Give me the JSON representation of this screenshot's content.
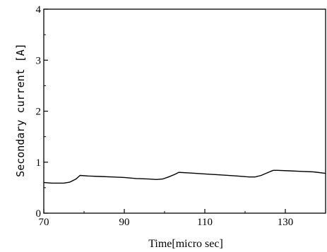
{
  "chart_data": {
    "type": "line",
    "title": "",
    "xlabel": "Time[micro sec]",
    "ylabel": "Secondary current [A]",
    "xlim": [
      70,
      140
    ],
    "ylim": [
      0,
      4
    ],
    "x_ticks": [
      70,
      90,
      110,
      130
    ],
    "y_ticks": [
      0,
      1,
      2,
      3,
      4
    ],
    "grid": false,
    "series": [
      {
        "x": [
          70,
          72,
          75,
          76.5,
          78,
          79,
          81,
          84,
          87,
          90,
          93,
          96,
          98,
          99.5,
          101,
          102.5,
          103.5,
          106,
          110,
          114,
          118,
          121,
          122.5,
          124,
          125.5,
          127,
          128,
          131,
          134,
          137,
          140
        ],
        "y": [
          0.6,
          0.59,
          0.59,
          0.61,
          0.67,
          0.74,
          0.73,
          0.72,
          0.71,
          0.7,
          0.68,
          0.67,
          0.66,
          0.67,
          0.71,
          0.76,
          0.8,
          0.79,
          0.77,
          0.75,
          0.73,
          0.71,
          0.71,
          0.74,
          0.79,
          0.84,
          0.84,
          0.83,
          0.82,
          0.81,
          0.78
        ]
      }
    ]
  }
}
